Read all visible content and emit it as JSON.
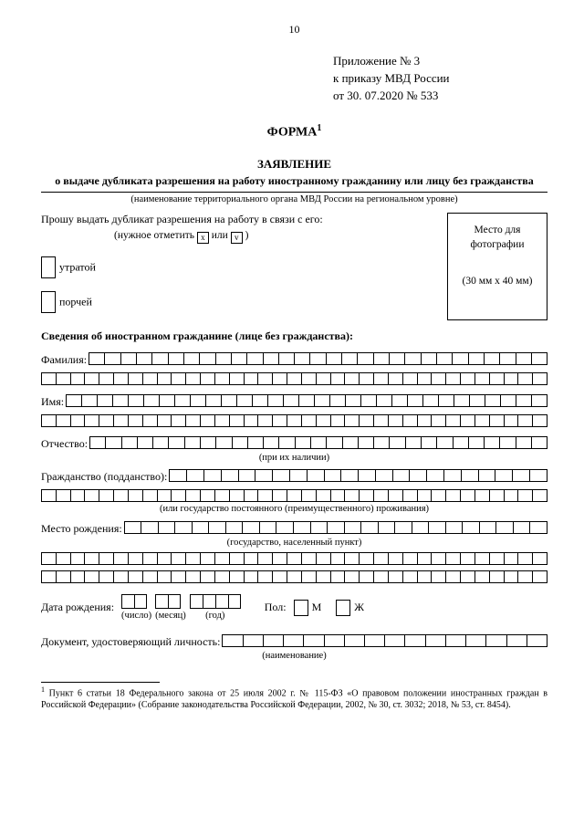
{
  "page_number": "10",
  "appendix": {
    "line1": "Приложение № 3",
    "line2": "к приказу МВД России",
    "line3": "от    30. 07.2020 № 533"
  },
  "form_label": "ФОРМА",
  "title": "ЗАЯВЛЕНИЕ",
  "subtitle": "о выдаче дубликата разрешения на работу иностранному гражданину или лицу без гражданства",
  "org_caption": "(наименование территориального органа МВД России на региональном уровне)",
  "request_line": "Прошу выдать дубликат разрешения на работу в связи с его:",
  "mark_hint_pre": "(нужное отметить",
  "mark_hint_or": "или",
  "mark_hint_post": ")",
  "reason1": "утратой",
  "reason2": "порчей",
  "photo": {
    "label": "Место для фотографии",
    "dims": "(30 мм x 40 мм)"
  },
  "section_heading": "Сведения об иностранном гражданине (лице без гражданства):",
  "labels": {
    "surname": "Фамилия:",
    "name": "Имя:",
    "patronymic": "Отчество:",
    "patronymic_caption": "(при их наличии)",
    "citizenship": "Гражданство (подданство):",
    "citizenship_caption": "(или государство постоянного (преимущественного) проживания)",
    "birthplace": "Место рождения:",
    "birthplace_caption": "(государство, населенный пункт)",
    "dob": "Дата рождения:",
    "day": "(число)",
    "month": "(месяц)",
    "year": "(год)",
    "sex": "Пол:",
    "m": "М",
    "f": "Ж",
    "doc": "Документ, удостоверяющий личность:",
    "doc_caption": "(наименование)"
  },
  "footnote": "Пункт 6 статьи 18 Федерального закона от 25 июля 2002 г. № 115-ФЗ «О правовом положении иностранных граждан в Российской Федерации» (Собрание законодательства Российской Федерации, 2002, № 30, ст. 3032; 2018, № 53, ст. 8454).",
  "cell_counts": {
    "full_row": 35,
    "surname_first": 29,
    "name_first": 31,
    "patronymic_first": 29,
    "citizenship_first": 22,
    "birthplace_first": 25,
    "doc_first": 16
  }
}
